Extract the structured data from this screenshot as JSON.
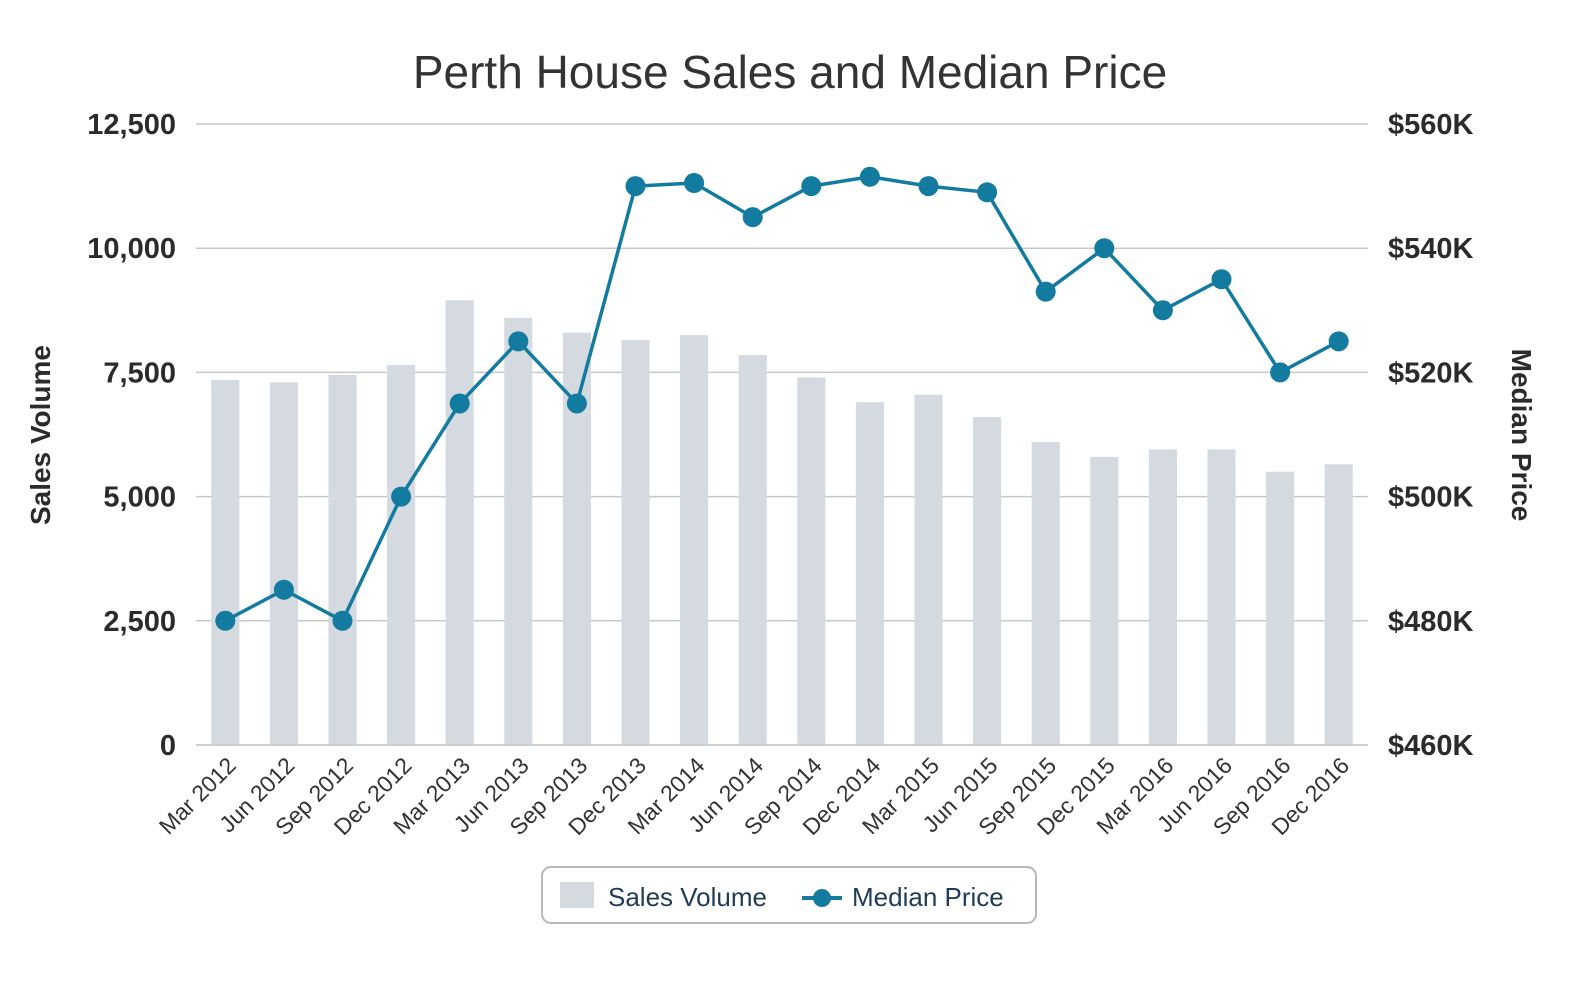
{
  "chart_data": {
    "type": "bar",
    "title": "Perth House Sales and Median Price",
    "xlabel": "",
    "ylabel": "Sales Volume",
    "y2label": "Median Price",
    "ylim": [
      0,
      12500
    ],
    "y2lim": [
      460,
      560
    ],
    "yticks": [
      0,
      2500,
      5000,
      7500,
      10000,
      12500
    ],
    "ytick_labels": [
      "0",
      "2,500",
      "5,000",
      "7,500",
      "10,000",
      "12,500"
    ],
    "y2ticks": [
      460,
      480,
      500,
      520,
      540,
      560
    ],
    "y2tick_labels": [
      "$460K",
      "$480K",
      "$500K",
      "$520K",
      "$540K",
      "$560K"
    ],
    "grid": true,
    "legend_position": "bottom-center",
    "categories": [
      "Mar 2012",
      "Jun 2012",
      "Sep 2012",
      "Dec 2012",
      "Mar 2013",
      "Jun 2013",
      "Sep 2013",
      "Dec 2013",
      "Mar 2014",
      "Jun 2014",
      "Sep 2014",
      "Dec 2014",
      "Mar 2015",
      "Jun 2015",
      "Sep 2015",
      "Dec 2015",
      "Mar 2016",
      "Jun 2016",
      "Sep 2016",
      "Dec 2016"
    ],
    "series": [
      {
        "name": "Sales Volume",
        "type": "bar",
        "axis": "left",
        "color": "#d5dae1",
        "values": [
          7350,
          7300,
          7450,
          7650,
          8950,
          8600,
          8300,
          8150,
          8250,
          7850,
          7400,
          6900,
          7050,
          6600,
          6100,
          5800,
          5950,
          5950,
          5500,
          5650
        ]
      },
      {
        "name": "Median Price",
        "type": "line",
        "axis": "right",
        "color": "#137aa0",
        "values": [
          480,
          485,
          480,
          500,
          515,
          525,
          515,
          550,
          550.5,
          545,
          550,
          551.5,
          550,
          549,
          533,
          540,
          530,
          535,
          520,
          525
        ]
      }
    ]
  }
}
